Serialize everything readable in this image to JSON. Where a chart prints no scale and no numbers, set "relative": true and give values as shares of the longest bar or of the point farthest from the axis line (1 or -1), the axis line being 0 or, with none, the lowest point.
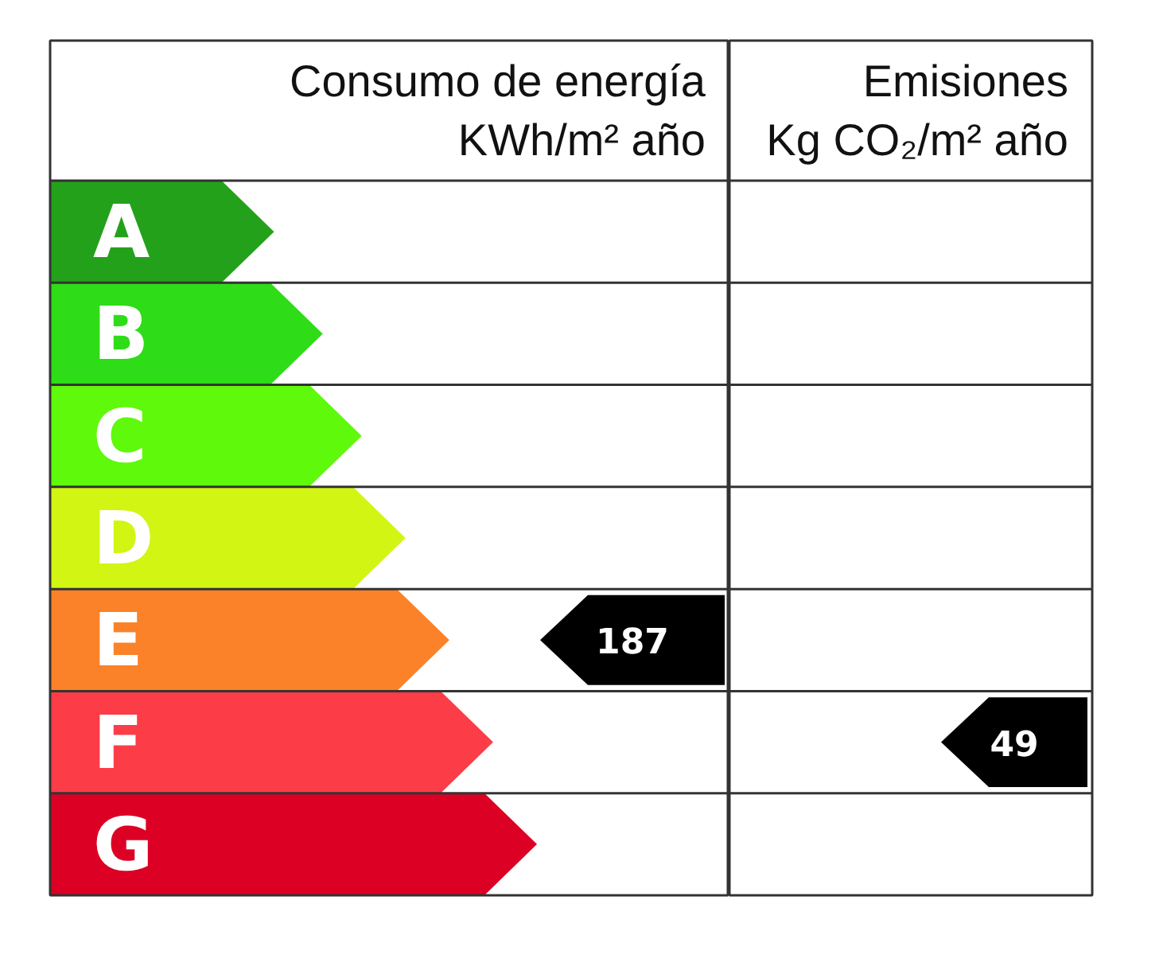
{
  "chart_data": [
    {
      "type": "bar",
      "orientation": "horizontal",
      "relative": true,
      "categories": [
        "A",
        "B",
        "C",
        "D",
        "E",
        "F",
        "G"
      ],
      "values": [
        0.46,
        0.56,
        0.64,
        0.73,
        0.82,
        0.91,
        1
      ],
      "colors": [
        "#24a11b",
        "#2edc17",
        "#5ff90c",
        "#d3f514",
        "#fb8228",
        "#fc3d47",
        "#dc0024"
      ]
    },
    {
      "type": "other",
      "title": "Consumo de energía\nKWh/m² año",
      "categories": [
        null,
        null,
        null,
        null,
        null,
        null,
        null
      ],
      "values": [
        null,
        null,
        null,
        null,
        187,
        null,
        null
      ],
      "data_labels": true
    },
    {
      "type": "other",
      "title": "Emisiones\nKg CO₂/m² año",
      "categories": [
        null,
        null,
        null,
        null,
        null,
        null,
        null
      ],
      "values": [
        null,
        null,
        null,
        null,
        null,
        49,
        null
      ],
      "data_labels": true
    }
  ]
}
